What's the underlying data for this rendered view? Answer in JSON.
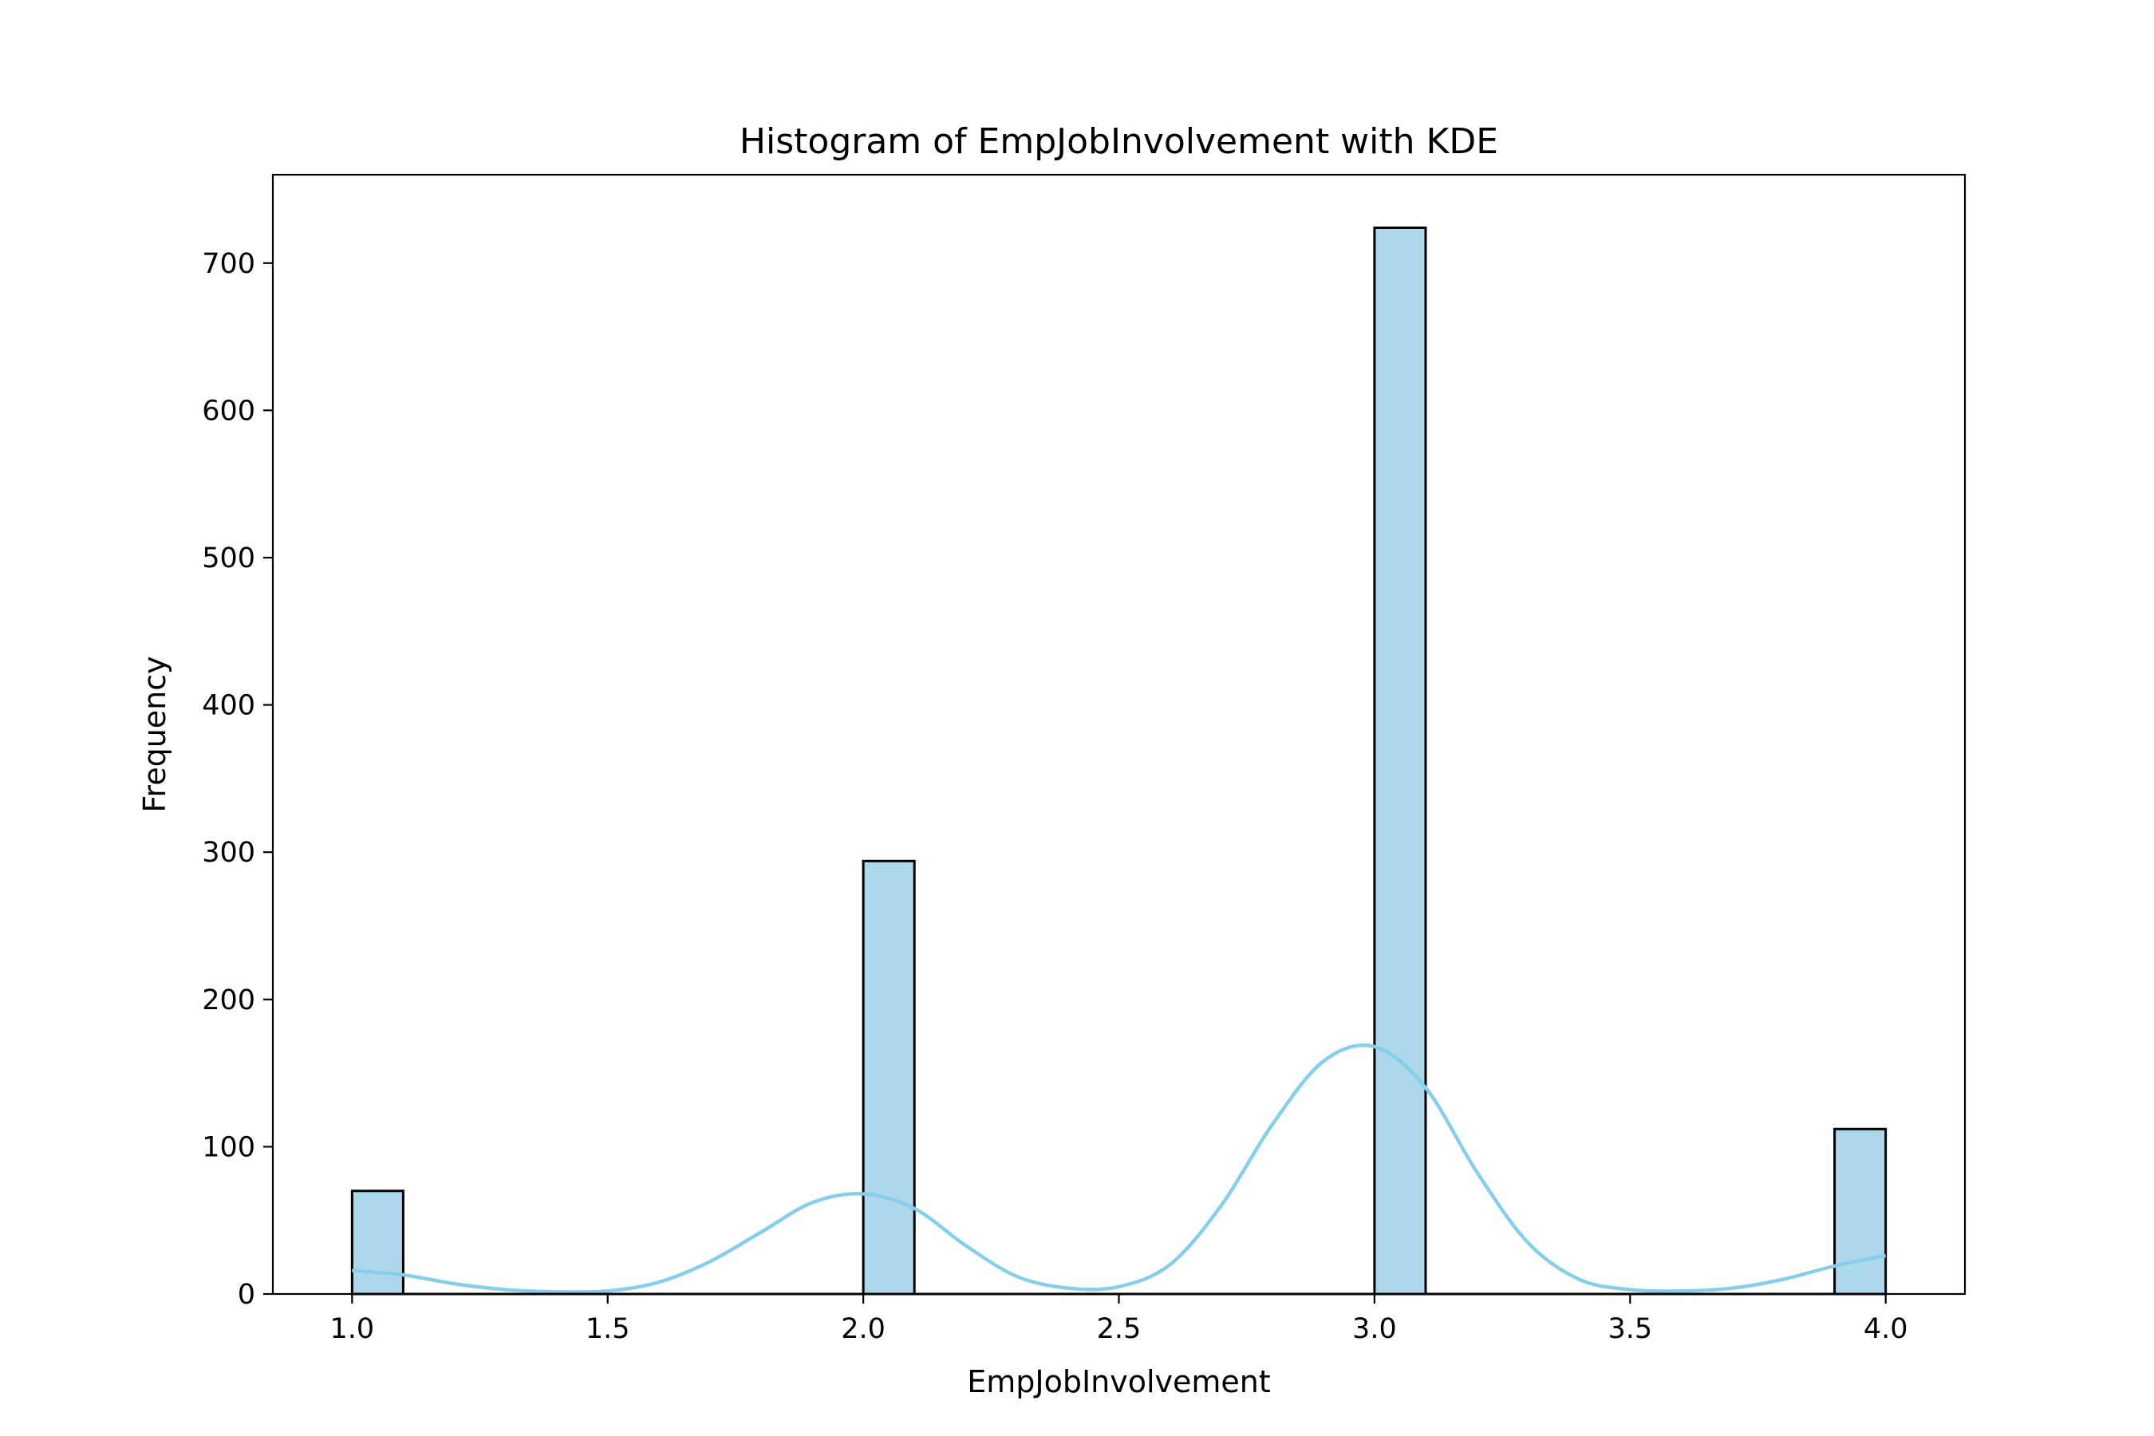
{
  "chart_data": {
    "type": "bar",
    "title": "Histogram of EmpJobInvolvement with KDE",
    "xlabel": "EmpJobInvolvement",
    "ylabel": "Frequency",
    "xlim": [
      0.845,
      4.155
    ],
    "ylim": [
      0,
      760
    ],
    "x_ticks": [
      "1.0",
      "1.5",
      "2.0",
      "2.5",
      "3.0",
      "3.5",
      "4.0"
    ],
    "x_tick_values": [
      1.0,
      1.5,
      2.0,
      2.5,
      3.0,
      3.5,
      4.0
    ],
    "y_ticks": [
      "0",
      "100",
      "200",
      "300",
      "400",
      "500",
      "600",
      "700"
    ],
    "y_tick_values": [
      0,
      100,
      200,
      300,
      400,
      500,
      600,
      700
    ],
    "bin_width": 0.1,
    "bars": [
      {
        "x_start": 1.0,
        "value": 70
      },
      {
        "x_start": 2.0,
        "value": 294
      },
      {
        "x_start": 3.0,
        "value": 724
      },
      {
        "x_start": 3.9,
        "value": 112
      }
    ],
    "kde": {
      "x": [
        1.0,
        1.1,
        1.2,
        1.3,
        1.4,
        1.5,
        1.6,
        1.7,
        1.8,
        1.9,
        2.0,
        2.1,
        2.2,
        2.3,
        2.4,
        2.5,
        2.6,
        2.7,
        2.8,
        2.9,
        3.0,
        3.1,
        3.2,
        3.3,
        3.4,
        3.5,
        3.6,
        3.7,
        3.8,
        3.9,
        4.0
      ],
      "y": [
        16,
        13,
        7,
        3,
        1.5,
        2,
        8,
        22,
        42,
        62,
        68,
        58,
        33,
        12,
        4,
        5,
        20,
        60,
        115,
        158,
        168,
        140,
        83,
        35,
        10,
        3,
        2,
        4,
        10,
        19,
        26
      ]
    },
    "bar_fill": "#add8ec",
    "bar_edge": "#000000",
    "kde_color": "#87ceeb",
    "grid": false
  }
}
